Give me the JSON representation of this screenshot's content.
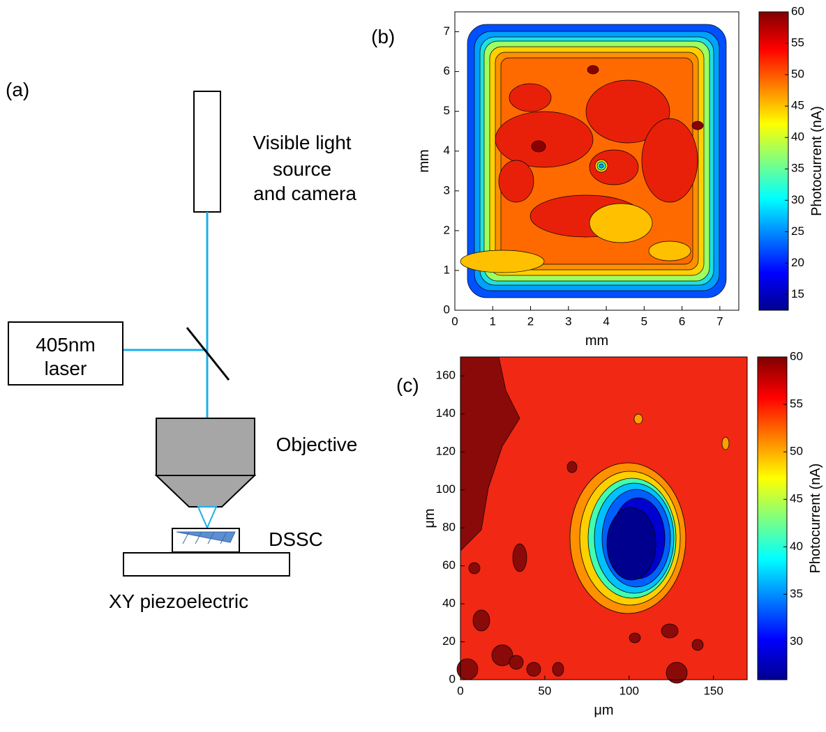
{
  "diagram": {
    "panel_label": "(a)",
    "camera_label": [
      "Visible light",
      "source",
      "and camera"
    ],
    "laser_label": [
      "405nm",
      "laser"
    ],
    "objective_label": "Objective",
    "sample_label": "DSSC",
    "stage_label": "XY piezoelectric"
  },
  "chart_data": [
    {
      "type": "contour",
      "panel_label": "(b)",
      "xlabel": "mm",
      "ylabel": "mm",
      "xlim": [
        0,
        7.5
      ],
      "ylim": [
        0,
        7.5
      ],
      "xticks": [
        0,
        1,
        2,
        3,
        4,
        5,
        6,
        7
      ],
      "yticks": [
        0,
        1,
        2,
        3,
        4,
        5,
        6,
        7
      ],
      "colormap": "jet",
      "colorbar": {
        "label": "Photocurrent (nA)",
        "lim": [
          12.5,
          60
        ],
        "ticks": [
          15,
          20,
          25,
          30,
          35,
          40,
          45,
          50,
          55,
          60
        ]
      }
    },
    {
      "type": "contour",
      "panel_label": "(c)",
      "xlabel": "μm",
      "ylabel": "μm",
      "xlim": [
        0,
        170
      ],
      "ylim": [
        0,
        170
      ],
      "xticks": [
        0,
        50,
        100,
        150
      ],
      "yticks": [
        0,
        20,
        40,
        60,
        80,
        100,
        120,
        140,
        160
      ],
      "colormap": "jet",
      "colorbar": {
        "label": "Photocurrent (nA)",
        "lim": [
          26,
          60
        ],
        "ticks": [
          30,
          35,
          40,
          45,
          50,
          55,
          60
        ]
      }
    }
  ]
}
